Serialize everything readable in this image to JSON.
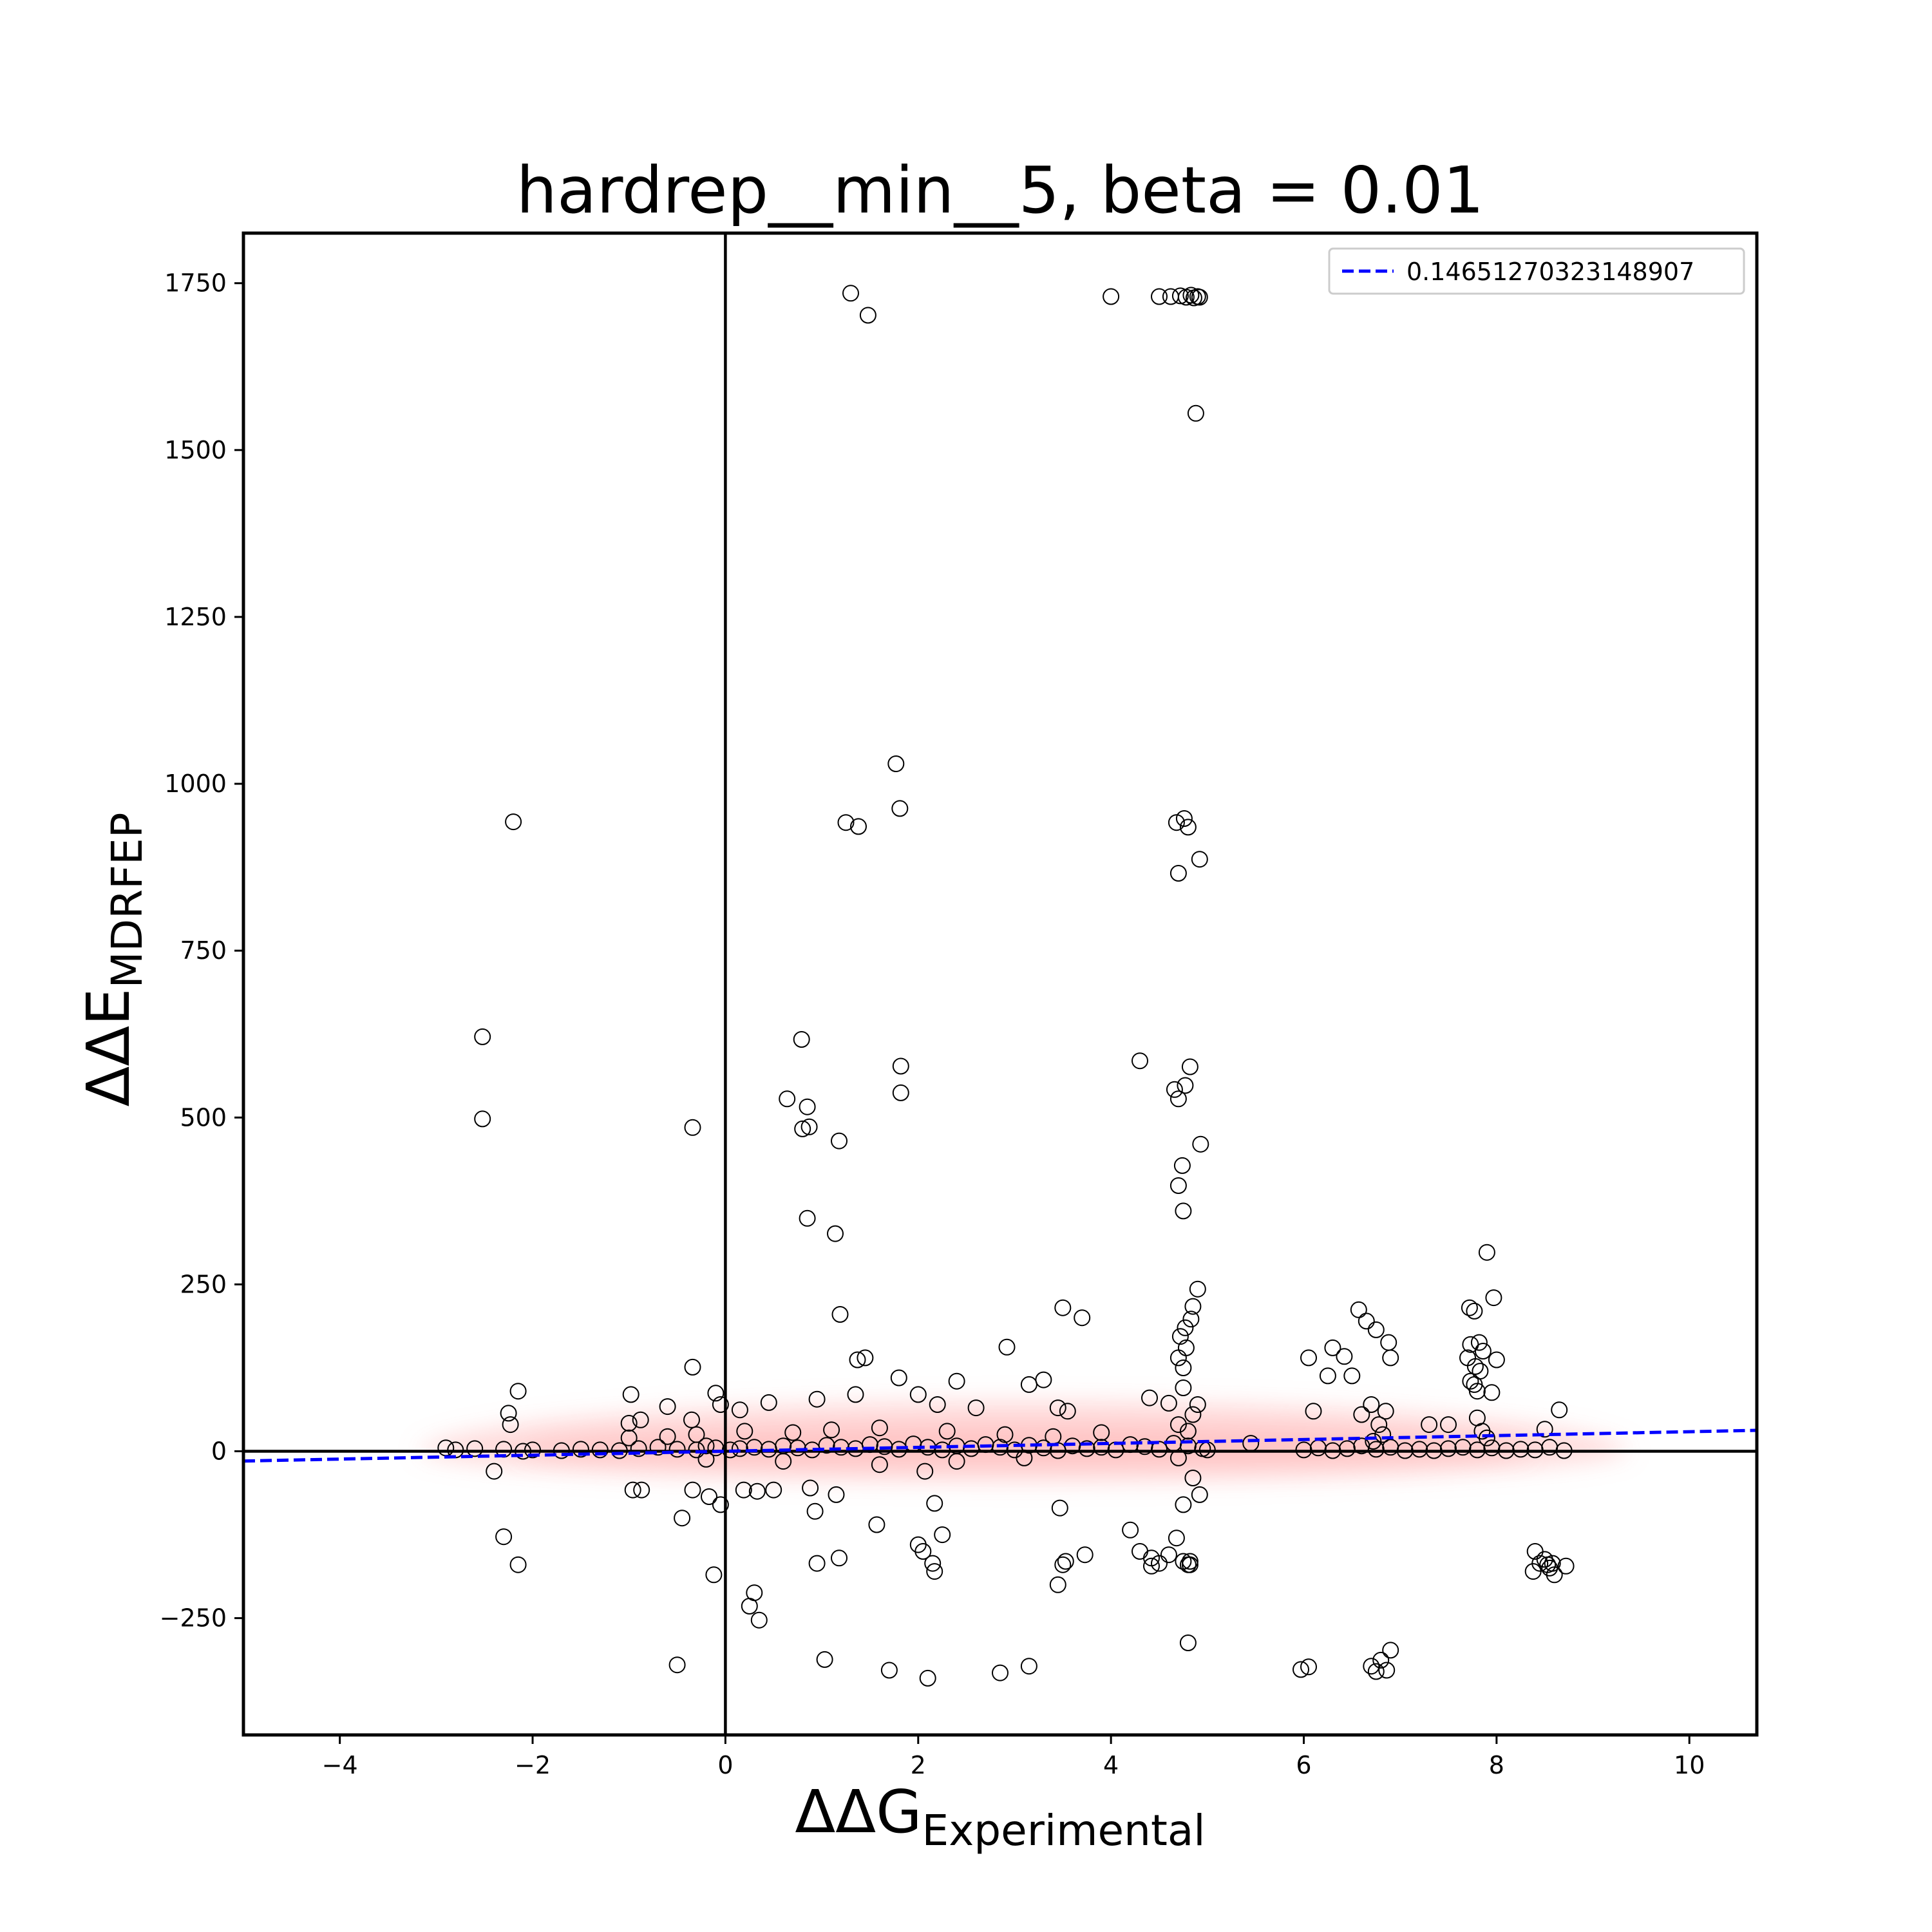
{
  "chart_data": {
    "type": "scatter",
    "title": "hardrep__min__5, beta = 0.01",
    "xlabel": {
      "main": "ΔΔG",
      "sub": "Experimental"
    },
    "ylabel": {
      "main": "ΔΔE",
      "sub": "MDRFEP"
    },
    "xlim": [
      -5,
      10.7
    ],
    "ylim": [
      -425,
      1825
    ],
    "xticks": [
      -4,
      -2,
      0,
      2,
      4,
      6,
      8,
      10
    ],
    "xtick_labels": [
      "−4",
      "−2",
      "0",
      "2",
      "4",
      "6",
      "8",
      "10"
    ],
    "yticks": [
      -250,
      0,
      250,
      500,
      750,
      1000,
      1250,
      1500,
      1750
    ],
    "ytick_labels": [
      "−250",
      "0",
      "250",
      "500",
      "750",
      "1000",
      "1250",
      "1500",
      "1750"
    ],
    "grid": false,
    "reference_lines": {
      "x": 0,
      "y": 0
    },
    "legend": {
      "placement": "top-right",
      "entries": [
        {
          "label": "0.14651270323148907",
          "style": "blue dashed line"
        }
      ]
    },
    "fit_line": {
      "slope": 0.1465,
      "intercept": 0,
      "x_range": [
        -5,
        10.7
      ],
      "color": "#0000ff"
    },
    "density_band": {
      "color": "#ff9999",
      "x_range": [
        -3.2,
        9.4
      ],
      "center_y": 0
    },
    "colors": {
      "points_edge": "#000000",
      "fit_line": "#0000ff",
      "density": "#ff9999",
      "axes": "#000000"
    },
    "points": [
      [
        1.3,
        1735
      ],
      [
        1.48,
        1702
      ],
      [
        4.0,
        1730
      ],
      [
        4.5,
        1730
      ],
      [
        4.62,
        1730
      ],
      [
        4.72,
        1731
      ],
      [
        4.78,
        1729
      ],
      [
        4.83,
        1732
      ],
      [
        4.86,
        1728
      ],
      [
        4.9,
        1730
      ],
      [
        4.92,
        1729
      ],
      [
        4.88,
        1555
      ],
      [
        1.77,
        1030
      ],
      [
        1.81,
        963
      ],
      [
        1.25,
        942
      ],
      [
        1.38,
        936
      ],
      [
        4.68,
        942
      ],
      [
        4.76,
        948
      ],
      [
        4.8,
        935
      ],
      [
        4.92,
        887
      ],
      [
        4.7,
        866
      ],
      [
        -2.2,
        943
      ],
      [
        -2.52,
        621
      ],
      [
        -2.52,
        498
      ],
      [
        0.79,
        617
      ],
      [
        1.82,
        577
      ],
      [
        1.82,
        537
      ],
      [
        0.64,
        528
      ],
      [
        0.85,
        516
      ],
      [
        0.8,
        483
      ],
      [
        0.87,
        486
      ],
      [
        1.18,
        465
      ],
      [
        -0.34,
        485
      ],
      [
        4.3,
        585
      ],
      [
        4.82,
        576
      ],
      [
        4.66,
        542
      ],
      [
        4.77,
        548
      ],
      [
        4.7,
        528
      ],
      [
        4.93,
        460
      ],
      [
        4.74,
        428
      ],
      [
        4.7,
        398
      ],
      [
        4.75,
        360
      ],
      [
        0.85,
        349
      ],
      [
        1.14,
        326
      ],
      [
        1.19,
        205
      ],
      [
        2.92,
        156
      ],
      [
        3.5,
        215
      ],
      [
        3.7,
        200
      ],
      [
        1.37,
        137
      ],
      [
        1.45,
        140
      ],
      [
        1.8,
        110
      ],
      [
        2.4,
        105
      ],
      [
        3.3,
        107
      ],
      [
        3.15,
        100
      ],
      [
        4.9,
        243
      ],
      [
        4.85,
        217
      ],
      [
        4.83,
        198
      ],
      [
        4.77,
        185
      ],
      [
        4.72,
        172
      ],
      [
        4.78,
        155
      ],
      [
        4.7,
        140
      ],
      [
        4.75,
        125
      ],
      [
        6.57,
        212
      ],
      [
        6.65,
        195
      ],
      [
        6.75,
        182
      ],
      [
        6.88,
        163
      ],
      [
        6.9,
        140
      ],
      [
        6.3,
        155
      ],
      [
        6.05,
        140
      ],
      [
        6.42,
        142
      ],
      [
        6.5,
        113
      ],
      [
        6.25,
        113
      ],
      [
        7.9,
        298
      ],
      [
        7.97,
        230
      ],
      [
        7.72,
        215
      ],
      [
        7.77,
        210
      ],
      [
        7.73,
        160
      ],
      [
        7.82,
        163
      ],
      [
        7.86,
        150
      ],
      [
        7.7,
        140
      ],
      [
        7.78,
        127
      ],
      [
        7.83,
        120
      ],
      [
        7.73,
        105
      ],
      [
        7.77,
        100
      ],
      [
        7.8,
        90
      ],
      [
        7.95,
        88
      ],
      [
        8.0,
        137
      ],
      [
        -0.34,
        126
      ],
      [
        -0.98,
        85
      ],
      [
        -2.15,
        90
      ],
      [
        -0.1,
        87
      ],
      [
        -0.6,
        67
      ],
      [
        -1.0,
        42
      ],
      [
        -2.25,
        57
      ],
      [
        -2.23,
        40
      ],
      [
        -0.88,
        47
      ],
      [
        -0.35,
        47
      ],
      [
        -0.05,
        70
      ],
      [
        0.15,
        62
      ],
      [
        0.45,
        73
      ],
      [
        0.95,
        78
      ],
      [
        1.35,
        85
      ],
      [
        2.0,
        85
      ],
      [
        2.2,
        70
      ],
      [
        2.6,
        65
      ],
      [
        3.45,
        65
      ],
      [
        3.55,
        60
      ],
      [
        4.4,
        80
      ],
      [
        4.6,
        72
      ],
      [
        6.1,
        60
      ],
      [
        6.6,
        55
      ],
      [
        6.85,
        60
      ],
      [
        7.3,
        40
      ],
      [
        8.65,
        62
      ],
      [
        8.5,
        33
      ],
      [
        7.5,
        40
      ],
      [
        -2.4,
        -30
      ],
      [
        -0.96,
        -58
      ],
      [
        -0.87,
        -58
      ],
      [
        -0.45,
        -100
      ],
      [
        -0.34,
        -58
      ],
      [
        -0.17,
        -68
      ],
      [
        -0.05,
        -80
      ],
      [
        0.19,
        -58
      ],
      [
        0.33,
        -60
      ],
      [
        0.5,
        -58
      ],
      [
        0.88,
        -55
      ],
      [
        0.93,
        -90
      ],
      [
        1.15,
        -65
      ],
      [
        1.57,
        -110
      ],
      [
        2.07,
        -30
      ],
      [
        2.17,
        -78
      ],
      [
        2.25,
        -125
      ],
      [
        3.47,
        -85
      ],
      [
        -2.3,
        -128
      ],
      [
        -2.15,
        -170
      ],
      [
        -0.12,
        -185
      ],
      [
        0.95,
        -168
      ],
      [
        1.18,
        -160
      ],
      [
        2.0,
        -140
      ],
      [
        2.05,
        -150
      ],
      [
        2.15,
        -168
      ],
      [
        2.17,
        -180
      ],
      [
        3.5,
        -170
      ],
      [
        3.53,
        -165
      ],
      [
        3.45,
        -200
      ],
      [
        3.73,
        -155
      ],
      [
        4.2,
        -118
      ],
      [
        4.3,
        -150
      ],
      [
        4.42,
        -160
      ],
      [
        4.42,
        -172
      ],
      [
        4.5,
        -168
      ],
      [
        4.6,
        -155
      ],
      [
        4.68,
        -130
      ],
      [
        4.75,
        -165
      ],
      [
        4.8,
        -170
      ],
      [
        4.82,
        -165
      ],
      [
        4.82,
        -170
      ],
      [
        8.4,
        -150
      ],
      [
        8.38,
        -180
      ],
      [
        8.45,
        -168
      ],
      [
        8.5,
        -162
      ],
      [
        8.53,
        -170
      ],
      [
        8.58,
        -168
      ],
      [
        8.6,
        -185
      ],
      [
        8.72,
        -172
      ],
      [
        8.55,
        -175
      ],
      [
        0.25,
        -232
      ],
      [
        0.3,
        -212
      ],
      [
        0.35,
        -253
      ],
      [
        -0.5,
        -320
      ],
      [
        1.03,
        -312
      ],
      [
        1.7,
        -328
      ],
      [
        2.1,
        -340
      ],
      [
        2.85,
        -332
      ],
      [
        3.15,
        -322
      ],
      [
        4.8,
        -287
      ],
      [
        5.97,
        -327
      ],
      [
        6.05,
        -323
      ],
      [
        6.7,
        -322
      ],
      [
        6.75,
        -330
      ],
      [
        6.8,
        -313
      ],
      [
        6.86,
        -328
      ],
      [
        6.9,
        -298
      ],
      [
        -2.9,
        5
      ],
      [
        -2.8,
        2
      ],
      [
        -2.6,
        4
      ],
      [
        -2.3,
        3
      ],
      [
        -2.1,
        0
      ],
      [
        -2.0,
        2
      ],
      [
        -1.7,
        1
      ],
      [
        -1.5,
        3
      ],
      [
        -1.3,
        2
      ],
      [
        -1.1,
        1
      ],
      [
        -0.9,
        4
      ],
      [
        -0.7,
        6
      ],
      [
        -0.5,
        3
      ],
      [
        -0.3,
        2
      ],
      [
        -0.2,
        8
      ],
      [
        -0.1,
        5
      ],
      [
        0.05,
        2
      ],
      [
        0.15,
        4
      ],
      [
        0.3,
        6
      ],
      [
        0.45,
        3
      ],
      [
        0.6,
        8
      ],
      [
        0.75,
        5
      ],
      [
        0.9,
        2
      ],
      [
        1.05,
        9
      ],
      [
        1.2,
        6
      ],
      [
        1.35,
        4
      ],
      [
        1.5,
        10
      ],
      [
        1.65,
        7
      ],
      [
        1.8,
        3
      ],
      [
        1.95,
        11
      ],
      [
        2.1,
        6
      ],
      [
        2.25,
        2
      ],
      [
        2.4,
        8
      ],
      [
        2.55,
        4
      ],
      [
        2.7,
        10
      ],
      [
        2.85,
        6
      ],
      [
        3.0,
        2
      ],
      [
        3.15,
        9
      ],
      [
        3.3,
        5
      ],
      [
        3.45,
        1
      ],
      [
        3.6,
        8
      ],
      [
        3.75,
        4
      ],
      [
        3.9,
        6
      ],
      [
        4.05,
        2
      ],
      [
        4.2,
        10
      ],
      [
        4.35,
        7
      ],
      [
        4.5,
        3
      ],
      [
        4.65,
        12
      ],
      [
        4.8,
        8
      ],
      [
        4.95,
        4
      ],
      [
        5.0,
        2
      ],
      [
        5.45,
        12
      ],
      [
        6.0,
        2
      ],
      [
        6.15,
        5
      ],
      [
        6.3,
        1
      ],
      [
        6.45,
        4
      ],
      [
        6.6,
        8
      ],
      [
        6.75,
        3
      ],
      [
        6.9,
        6
      ],
      [
        7.05,
        1
      ],
      [
        7.2,
        3
      ],
      [
        7.35,
        1
      ],
      [
        7.5,
        4
      ],
      [
        7.65,
        6
      ],
      [
        7.8,
        2
      ],
      [
        7.95,
        5
      ],
      [
        8.1,
        1
      ],
      [
        8.25,
        3
      ],
      [
        8.4,
        2
      ],
      [
        8.55,
        6
      ],
      [
        8.7,
        1
      ],
      [
        -1.0,
        20
      ],
      [
        -0.6,
        22
      ],
      [
        -0.3,
        25
      ],
      [
        0.2,
        30
      ],
      [
        0.7,
        28
      ],
      [
        1.1,
        32
      ],
      [
        1.6,
        35
      ],
      [
        2.3,
        30
      ],
      [
        2.9,
        25
      ],
      [
        3.4,
        22
      ],
      [
        3.9,
        28
      ],
      [
        4.7,
        40
      ],
      [
        4.85,
        55
      ],
      [
        4.9,
        70
      ],
      [
        4.75,
        95
      ],
      [
        4.8,
        30
      ],
      [
        4.7,
        -10
      ],
      [
        4.85,
        -40
      ],
      [
        4.92,
        -65
      ],
      [
        4.75,
        -80
      ],
      [
        6.7,
        70
      ],
      [
        6.78,
        40
      ],
      [
        6.82,
        25
      ],
      [
        6.72,
        15
      ],
      [
        7.8,
        50
      ],
      [
        7.85,
        30
      ],
      [
        7.9,
        20
      ],
      [
        1.6,
        -20
      ],
      [
        2.4,
        -15
      ],
      [
        3.1,
        -10
      ],
      [
        0.6,
        -15
      ],
      [
        -0.2,
        -12
      ]
    ]
  }
}
